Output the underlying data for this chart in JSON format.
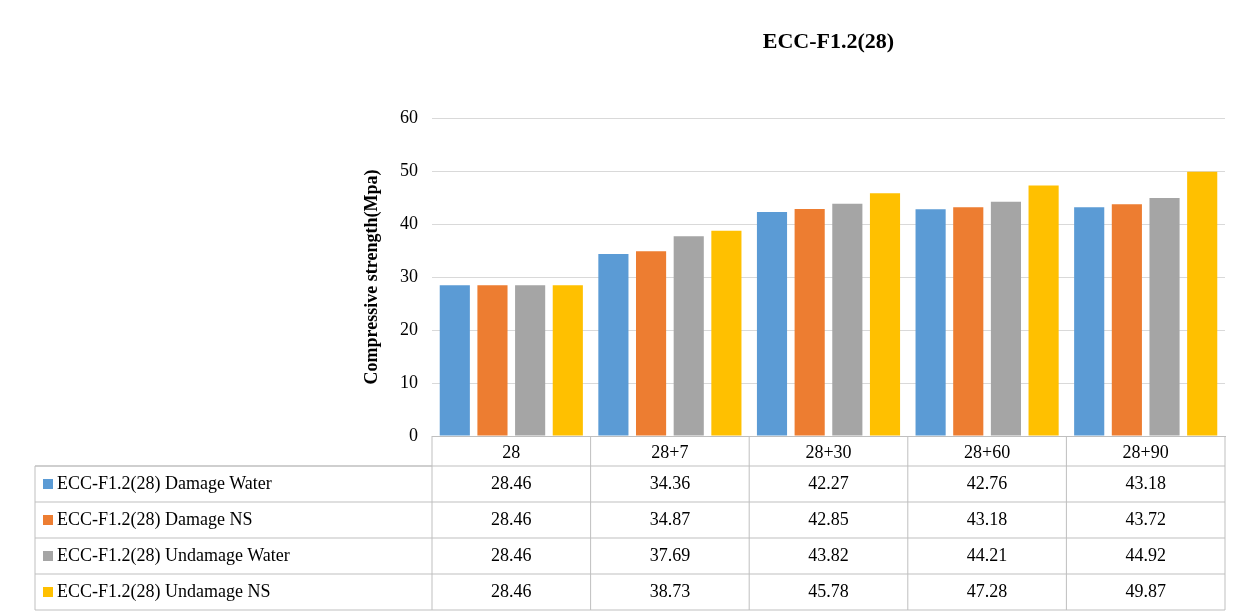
{
  "chart_data": {
    "type": "bar",
    "title": "ECC-F1.2(28)",
    "ylabel": "Compressive strength(Mpa)",
    "categories": [
      "28",
      "28+7",
      "28+30",
      "28+60",
      "28+90"
    ],
    "series": [
      {
        "name": "ECC-F1.2(28) Damage Water",
        "color": "#5b9bd5",
        "values": [
          28.46,
          34.36,
          42.27,
          42.76,
          43.18
        ]
      },
      {
        "name": "ECC-F1.2(28) Damage NS",
        "color": "#ed7d31",
        "values": [
          28.46,
          34.87,
          42.85,
          43.18,
          43.72
        ]
      },
      {
        "name": "ECC-F1.2(28) Undamage Water",
        "color": "#a5a5a5",
        "values": [
          28.46,
          37.69,
          43.82,
          44.21,
          44.92
        ]
      },
      {
        "name": "ECC-F1.2(28) Undamage NS",
        "color": "#ffc000",
        "values": [
          28.46,
          38.73,
          45.78,
          47.28,
          49.87
        ]
      }
    ],
    "ylim": [
      0,
      60
    ],
    "yticks": [
      0,
      10,
      20,
      30,
      40,
      50,
      60
    ],
    "grid": "y",
    "legend": "bottom",
    "data_labels": true
  }
}
